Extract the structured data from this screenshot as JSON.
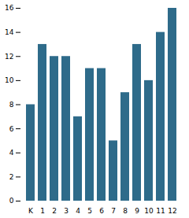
{
  "chart_data": {
    "type": "bar",
    "categories": [
      "K",
      "1",
      "2",
      "3",
      "4",
      "5",
      "6",
      "7",
      "8",
      "9",
      "10",
      "11",
      "12"
    ],
    "values": [
      8,
      13,
      12,
      12,
      7,
      11,
      11,
      5,
      9,
      13,
      10,
      14,
      16
    ],
    "color": "#2e6b8a",
    "ylim": [
      0,
      16
    ],
    "yticks": [
      0,
      2,
      4,
      6,
      8,
      10,
      12,
      14,
      16
    ],
    "grid": false
  }
}
